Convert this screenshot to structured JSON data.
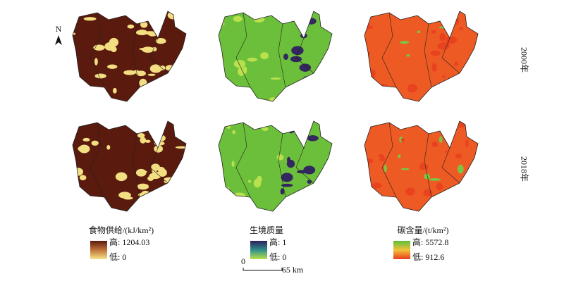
{
  "row_labels": [
    "2000年",
    "2018年"
  ],
  "north": "N",
  "legends": [
    {
      "title": "食物供给/(kJ/km²)",
      "high": "高: 1204.03",
      "low": "低: 0"
    },
    {
      "title": "生境质量",
      "high": "高: 1",
      "low": "低: 0"
    },
    {
      "title": "碳含量/(t/km²)",
      "high": "高: 5572.8",
      "low": "低: 912.6"
    }
  ],
  "scale_bar": {
    "start": "0",
    "end": "65 km"
  }
}
